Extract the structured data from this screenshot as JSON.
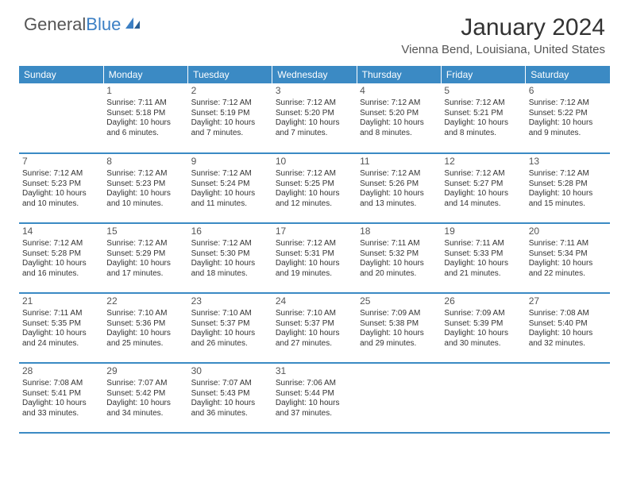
{
  "brand": {
    "text_gray": "General",
    "text_blue": "Blue"
  },
  "title": "January 2024",
  "location": "Vienna Bend, Louisiana, United States",
  "colors": {
    "header_bg": "#3b8ac4",
    "header_text": "#ffffff",
    "border": "#3b8ac4",
    "text": "#333333",
    "muted": "#555555",
    "logo_blue": "#3b7fc4",
    "page_bg": "#ffffff"
  },
  "day_headers": [
    "Sunday",
    "Monday",
    "Tuesday",
    "Wednesday",
    "Thursday",
    "Friday",
    "Saturday"
  ],
  "weeks": [
    [
      null,
      {
        "n": "1",
        "sr": "7:11 AM",
        "ss": "5:18 PM",
        "dl": "10 hours and 6 minutes."
      },
      {
        "n": "2",
        "sr": "7:12 AM",
        "ss": "5:19 PM",
        "dl": "10 hours and 7 minutes."
      },
      {
        "n": "3",
        "sr": "7:12 AM",
        "ss": "5:20 PM",
        "dl": "10 hours and 7 minutes."
      },
      {
        "n": "4",
        "sr": "7:12 AM",
        "ss": "5:20 PM",
        "dl": "10 hours and 8 minutes."
      },
      {
        "n": "5",
        "sr": "7:12 AM",
        "ss": "5:21 PM",
        "dl": "10 hours and 8 minutes."
      },
      {
        "n": "6",
        "sr": "7:12 AM",
        "ss": "5:22 PM",
        "dl": "10 hours and 9 minutes."
      }
    ],
    [
      {
        "n": "7",
        "sr": "7:12 AM",
        "ss": "5:23 PM",
        "dl": "10 hours and 10 minutes."
      },
      {
        "n": "8",
        "sr": "7:12 AM",
        "ss": "5:23 PM",
        "dl": "10 hours and 10 minutes."
      },
      {
        "n": "9",
        "sr": "7:12 AM",
        "ss": "5:24 PM",
        "dl": "10 hours and 11 minutes."
      },
      {
        "n": "10",
        "sr": "7:12 AM",
        "ss": "5:25 PM",
        "dl": "10 hours and 12 minutes."
      },
      {
        "n": "11",
        "sr": "7:12 AM",
        "ss": "5:26 PM",
        "dl": "10 hours and 13 minutes."
      },
      {
        "n": "12",
        "sr": "7:12 AM",
        "ss": "5:27 PM",
        "dl": "10 hours and 14 minutes."
      },
      {
        "n": "13",
        "sr": "7:12 AM",
        "ss": "5:28 PM",
        "dl": "10 hours and 15 minutes."
      }
    ],
    [
      {
        "n": "14",
        "sr": "7:12 AM",
        "ss": "5:28 PM",
        "dl": "10 hours and 16 minutes."
      },
      {
        "n": "15",
        "sr": "7:12 AM",
        "ss": "5:29 PM",
        "dl": "10 hours and 17 minutes."
      },
      {
        "n": "16",
        "sr": "7:12 AM",
        "ss": "5:30 PM",
        "dl": "10 hours and 18 minutes."
      },
      {
        "n": "17",
        "sr": "7:12 AM",
        "ss": "5:31 PM",
        "dl": "10 hours and 19 minutes."
      },
      {
        "n": "18",
        "sr": "7:11 AM",
        "ss": "5:32 PM",
        "dl": "10 hours and 20 minutes."
      },
      {
        "n": "19",
        "sr": "7:11 AM",
        "ss": "5:33 PM",
        "dl": "10 hours and 21 minutes."
      },
      {
        "n": "20",
        "sr": "7:11 AM",
        "ss": "5:34 PM",
        "dl": "10 hours and 22 minutes."
      }
    ],
    [
      {
        "n": "21",
        "sr": "7:11 AM",
        "ss": "5:35 PM",
        "dl": "10 hours and 24 minutes."
      },
      {
        "n": "22",
        "sr": "7:10 AM",
        "ss": "5:36 PM",
        "dl": "10 hours and 25 minutes."
      },
      {
        "n": "23",
        "sr": "7:10 AM",
        "ss": "5:37 PM",
        "dl": "10 hours and 26 minutes."
      },
      {
        "n": "24",
        "sr": "7:10 AM",
        "ss": "5:37 PM",
        "dl": "10 hours and 27 minutes."
      },
      {
        "n": "25",
        "sr": "7:09 AM",
        "ss": "5:38 PM",
        "dl": "10 hours and 29 minutes."
      },
      {
        "n": "26",
        "sr": "7:09 AM",
        "ss": "5:39 PM",
        "dl": "10 hours and 30 minutes."
      },
      {
        "n": "27",
        "sr": "7:08 AM",
        "ss": "5:40 PM",
        "dl": "10 hours and 32 minutes."
      }
    ],
    [
      {
        "n": "28",
        "sr": "7:08 AM",
        "ss": "5:41 PM",
        "dl": "10 hours and 33 minutes."
      },
      {
        "n": "29",
        "sr": "7:07 AM",
        "ss": "5:42 PM",
        "dl": "10 hours and 34 minutes."
      },
      {
        "n": "30",
        "sr": "7:07 AM",
        "ss": "5:43 PM",
        "dl": "10 hours and 36 minutes."
      },
      {
        "n": "31",
        "sr": "7:06 AM",
        "ss": "5:44 PM",
        "dl": "10 hours and 37 minutes."
      },
      null,
      null,
      null
    ]
  ],
  "labels": {
    "sunrise": "Sunrise:",
    "sunset": "Sunset:",
    "daylight": "Daylight:"
  }
}
